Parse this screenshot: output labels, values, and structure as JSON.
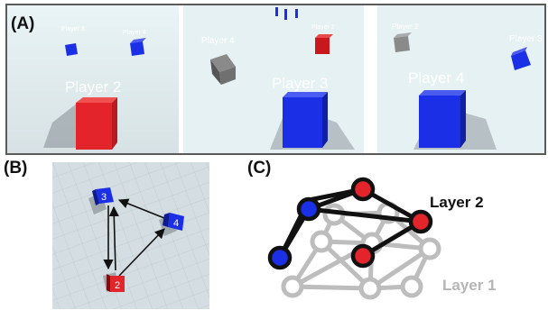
{
  "panels": {
    "a_label": "(A)",
    "b_label": "(B)",
    "c_label": "(C)"
  },
  "views": [
    {
      "main_label": "Player 2",
      "small_labels": [
        "Player 3",
        "Player 4"
      ]
    },
    {
      "main_label": "Player 3",
      "small_labels": [
        "Player 4",
        "Player 2"
      ]
    },
    {
      "main_label": "Player 4",
      "small_labels": [
        "Player 2",
        "Player 3"
      ]
    }
  ],
  "topview": {
    "agents": [
      "3",
      "4",
      "2"
    ]
  },
  "network": {
    "layer2_label": "Layer 2",
    "layer1_label": "Layer 1"
  },
  "colors": {
    "red": "#e3242b",
    "blue": "#1a2fe6",
    "gray_cube": "#7a7a7a",
    "layer1_gray": "#b9b9b9",
    "floor": "#cfd8db",
    "sky": "#e8f3f6"
  }
}
